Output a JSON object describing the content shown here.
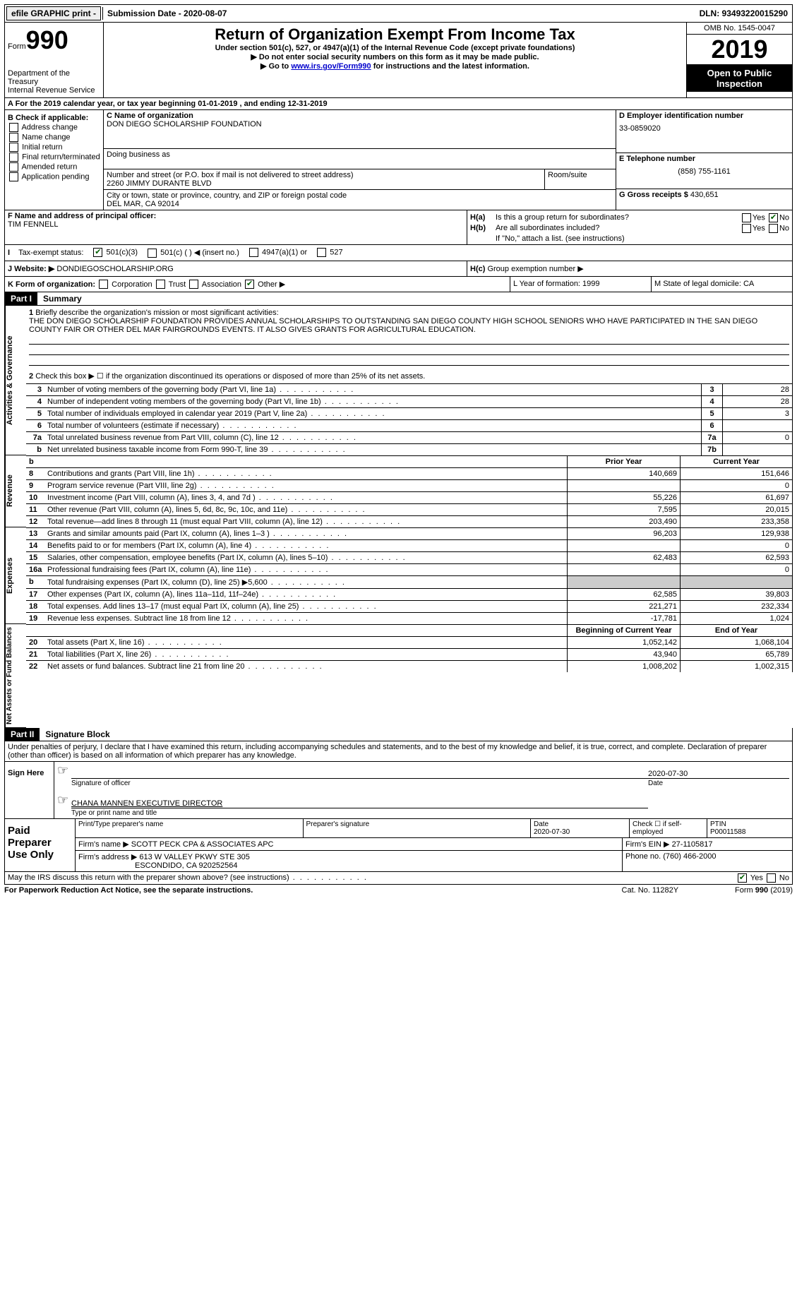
{
  "topbar": {
    "efile": "efile GRAPHIC print - ",
    "submission": "Submission Date - 2020-08-07",
    "dln": "DLN: 93493220015290"
  },
  "header": {
    "form_label": "Form",
    "form_number": "990",
    "dept": "Department of the Treasury\nInternal Revenue Service",
    "title": "Return of Organization Exempt From Income Tax",
    "subtitle": "Under section 501(c), 527, or 4947(a)(1) of the Internal Revenue Code (except private foundations)",
    "note1": "▶ Do not enter social security numbers on this form as it may be made public.",
    "note2_pre": "▶ Go to ",
    "note2_link": "www.irs.gov/Form990",
    "note2_post": " for instructions and the latest information.",
    "omb": "OMB No. 1545-0047",
    "year": "2019",
    "open": "Open to Public Inspection"
  },
  "row_a": "A For the 2019 calendar year, or tax year beginning 01-01-2019   , and ending 12-31-2019",
  "section_b": {
    "label": "B Check if applicable:",
    "items": [
      "Address change",
      "Name change",
      "Initial return",
      "Final return/terminated",
      "Amended return",
      "Application pending"
    ]
  },
  "section_c": {
    "name_label": "C Name of organization",
    "name": "DON DIEGO SCHOLARSHIP FOUNDATION",
    "dba_label": "Doing business as",
    "addr_label": "Number and street (or P.O. box if mail is not delivered to street address)",
    "addr": "2260 JIMMY DURANTE BLVD",
    "suite_label": "Room/suite",
    "city_label": "City or town, state or province, country, and ZIP or foreign postal code",
    "city": "DEL MAR, CA  92014"
  },
  "section_d": {
    "ein_label": "D Employer identification number",
    "ein": "33-0859020",
    "tel_label": "E Telephone number",
    "tel": "(858) 755-1161",
    "gross_label": "G Gross receipts $",
    "gross": "430,651"
  },
  "section_f": {
    "label": "F Name and address of principal officer:",
    "name": "TIM FENNELL"
  },
  "section_h": {
    "ha": "Is this a group return for subordinates?",
    "hb": "Are all subordinates included?",
    "hb_note": "If \"No,\" attach a list. (see instructions)",
    "hc": "Group exemption number ▶"
  },
  "section_i": {
    "label": "Tax-exempt status:",
    "opts": [
      "501(c)(3)",
      "501(c) (   ) ◀ (insert no.)",
      "4947(a)(1) or",
      "527"
    ]
  },
  "section_j": {
    "label": "J  Website: ▶",
    "val": "DONDIEGOSCHOLARSHIP.ORG"
  },
  "section_k": {
    "label": "K Form of organization:",
    "opts": [
      "Corporation",
      "Trust",
      "Association",
      "Other ▶"
    ]
  },
  "section_l": "L Year of formation: 1999",
  "section_m": "M State of legal domicile: CA",
  "part1": {
    "num": "Part I",
    "label": "Summary"
  },
  "q1": {
    "n": "1",
    "label": "Briefly describe the organization's mission or most significant activities:",
    "text": "THE DON DIEGO SCHOLARSHIP FOUNDATION PROVIDES ANNUAL SCHOLARSHIPS TO OUTSTANDING SAN DIEGO COUNTY HIGH SCHOOL SENIORS WHO HAVE PARTICIPATED IN THE SAN DIEGO COUNTY FAIR OR OTHER DEL MAR FAIRGROUNDS EVENTS. IT ALSO GIVES GRANTS FOR AGRICULTURAL EDUCATION."
  },
  "q2": {
    "n": "2",
    "label": "Check this box ▶ ☐  if the organization discontinued its operations or disposed of more than 25% of its net assets."
  },
  "gov_rows": [
    {
      "n": "3",
      "label": "Number of voting members of the governing body (Part VI, line 1a)",
      "box": "3",
      "val": "28"
    },
    {
      "n": "4",
      "label": "Number of independent voting members of the governing body (Part VI, line 1b)",
      "box": "4",
      "val": "28"
    },
    {
      "n": "5",
      "label": "Total number of individuals employed in calendar year 2019 (Part V, line 2a)",
      "box": "5",
      "val": "3"
    },
    {
      "n": "6",
      "label": "Total number of volunteers (estimate if necessary)",
      "box": "6",
      "val": ""
    },
    {
      "n": "7a",
      "label": "Total unrelated business revenue from Part VIII, column (C), line 12",
      "box": "7a",
      "val": "0"
    },
    {
      "n": "b",
      "label": "Net unrelated business taxable income from Form 990-T, line 39",
      "box": "7b",
      "val": ""
    }
  ],
  "fin_hdr": {
    "py": "Prior Year",
    "cy": "Current Year"
  },
  "revenue_rows": [
    {
      "n": "8",
      "label": "Contributions and grants (Part VIII, line 1h)",
      "py": "140,669",
      "cy": "151,646"
    },
    {
      "n": "9",
      "label": "Program service revenue (Part VIII, line 2g)",
      "py": "",
      "cy": "0"
    },
    {
      "n": "10",
      "label": "Investment income (Part VIII, column (A), lines 3, 4, and 7d )",
      "py": "55,226",
      "cy": "61,697"
    },
    {
      "n": "11",
      "label": "Other revenue (Part VIII, column (A), lines 5, 6d, 8c, 9c, 10c, and 11e)",
      "py": "7,595",
      "cy": "20,015"
    },
    {
      "n": "12",
      "label": "Total revenue—add lines 8 through 11 (must equal Part VIII, column (A), line 12)",
      "py": "203,490",
      "cy": "233,358"
    }
  ],
  "expense_rows": [
    {
      "n": "13",
      "label": "Grants and similar amounts paid (Part IX, column (A), lines 1–3 )",
      "py": "96,203",
      "cy": "129,938"
    },
    {
      "n": "14",
      "label": "Benefits paid to or for members (Part IX, column (A), line 4)",
      "py": "",
      "cy": "0"
    },
    {
      "n": "15",
      "label": "Salaries, other compensation, employee benefits (Part IX, column (A), lines 5–10)",
      "py": "62,483",
      "cy": "62,593"
    },
    {
      "n": "16a",
      "label": "Professional fundraising fees (Part IX, column (A), line 11e)",
      "py": "",
      "cy": "0"
    },
    {
      "n": "b",
      "label": "Total fundraising expenses (Part IX, column (D), line 25) ▶5,600",
      "py": "shade",
      "cy": "shade"
    },
    {
      "n": "17",
      "label": "Other expenses (Part IX, column (A), lines 11a–11d, 11f–24e)",
      "py": "62,585",
      "cy": "39,803"
    },
    {
      "n": "18",
      "label": "Total expenses. Add lines 13–17 (must equal Part IX, column (A), line 25)",
      "py": "221,271",
      "cy": "232,334"
    },
    {
      "n": "19",
      "label": "Revenue less expenses. Subtract line 18 from line 12",
      "py": "-17,781",
      "cy": "1,024"
    }
  ],
  "net_hdr": {
    "py": "Beginning of Current Year",
    "cy": "End of Year"
  },
  "net_rows": [
    {
      "n": "20",
      "label": "Total assets (Part X, line 16)",
      "py": "1,052,142",
      "cy": "1,068,104"
    },
    {
      "n": "21",
      "label": "Total liabilities (Part X, line 26)",
      "py": "43,940",
      "cy": "65,789"
    },
    {
      "n": "22",
      "label": "Net assets or fund balances. Subtract line 21 from line 20",
      "py": "1,008,202",
      "cy": "1,002,315"
    }
  ],
  "part2": {
    "num": "Part II",
    "label": "Signature Block"
  },
  "penalty": "Under penalties of perjury, I declare that I have examined this return, including accompanying schedules and statements, and to the best of my knowledge and belief, it is true, correct, and complete. Declaration of preparer (other than officer) is based on all information of which preparer has any knowledge.",
  "sign": {
    "here": "Sign Here",
    "date": "2020-07-30",
    "sig_label": "Signature of officer",
    "date_label": "Date",
    "name": "CHANA MANNEN  EXECUTIVE DIRECTOR",
    "name_label": "Type or print name and title"
  },
  "prep": {
    "label": "Paid Preparer Use Only",
    "h1": "Print/Type preparer's name",
    "h2": "Preparer's signature",
    "h3": "Date",
    "h3v": "2020-07-30",
    "h4": "Check ☐ if self-employed",
    "h5": "PTIN",
    "h5v": "P00011588",
    "firm_label": "Firm's name   ▶",
    "firm": "SCOTT PECK CPA & ASSOCIATES APC",
    "ein_label": "Firm's EIN ▶",
    "ein": "27-1105817",
    "addr_label": "Firm's address ▶",
    "addr": "613 W VALLEY PKWY STE 305",
    "addr2": "ESCONDIDO, CA  920252564",
    "phone_label": "Phone no.",
    "phone": "(760) 466-2000"
  },
  "discuss": "May the IRS discuss this return with the preparer shown above? (see instructions)",
  "footer": {
    "left": "For Paperwork Reduction Act Notice, see the separate instructions.",
    "cat": "Cat. No. 11282Y",
    "right": "Form 990 (2019)"
  },
  "vertical_labels": {
    "gov": "Activities & Governance",
    "rev": "Revenue",
    "exp": "Expenses",
    "net": "Net Assets or Fund Balances"
  }
}
